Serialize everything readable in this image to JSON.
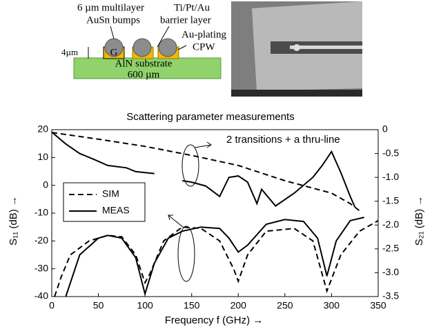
{
  "diagram": {
    "labels": [
      "6 µm multilayer",
      "AuSn bumps",
      "Ti/Pt/Au",
      "barrier layer",
      "Au-plating",
      "CPW",
      "4µm",
      "G",
      "AlN substrate",
      "600 µm"
    ]
  },
  "chart_data": {
    "type": "line",
    "title": "Scattering parameter measurements",
    "x_label": "Frequency f (GHz) →",
    "y_label": "S₁₁ (dB) →",
    "y2_label": "S₂₁ (dB) →",
    "annotation": "2 transitions + a thru-line",
    "xlim": [
      0,
      350
    ],
    "xticks": [
      0,
      50,
      100,
      150,
      200,
      250,
      300,
      350
    ],
    "ylim": [
      -40,
      20
    ],
    "yticks": [
      -40,
      -30,
      -20,
      -10,
      0,
      10,
      20
    ],
    "y2lim": [
      -3.5,
      0
    ],
    "y2ticks": [
      {
        "value": -3.5,
        "label": "-3.5"
      },
      {
        "value": -3,
        "label": "-3.0"
      },
      {
        "value": -2.5,
        "label": "-2.5"
      },
      {
        "value": -2,
        "label": "-2.0"
      },
      {
        "value": -1.5,
        "label": "-1.5"
      },
      {
        "value": -1,
        "label": "-1.0"
      },
      {
        "value": -0.5,
        "label": "-0.5"
      },
      0
    ],
    "legend": [
      {
        "name": "SIM",
        "style": "dashed"
      },
      {
        "name": "MEAS",
        "style": "solid"
      }
    ],
    "series": [
      {
        "style": "dashed",
        "color": "#000000",
        "axis": "y",
        "x": [
          3,
          10,
          20,
          40,
          60,
          75,
          90,
          100,
          105,
          120,
          140,
          160,
          180,
          195,
          200,
          210,
          230,
          260,
          280,
          295,
          310,
          330,
          350
        ],
        "values": [
          -40,
          -33,
          -25,
          -20,
          -18,
          -18.5,
          -25,
          -35,
          -32,
          -20,
          -15,
          -15.5,
          -20,
          -30,
          -34.5,
          -25,
          -16.5,
          -15.5,
          -20,
          -38,
          -25,
          -16.5,
          -12.7
        ]
      },
      {
        "style": "solid",
        "color": "#000000",
        "axis": "y",
        "x": [
          15,
          30,
          50,
          60,
          75,
          90,
          100,
          110,
          125,
          140,
          160,
          180,
          190,
          200,
          210,
          230,
          250,
          270,
          285,
          295,
          305,
          320,
          335
        ],
        "values": [
          -40,
          -25,
          -19,
          -18,
          -19,
          -26,
          -39,
          -28,
          -19,
          -16.5,
          -15,
          -15.5,
          -19,
          -24,
          -21.5,
          -14,
          -12.3,
          -13,
          -19,
          -32.6,
          -20,
          -12.7,
          -11.5
        ]
      },
      {
        "style": "dashed",
        "color": "#000000",
        "axis": "y2",
        "x": [
          0,
          50,
          100,
          150,
          200,
          250,
          300,
          320,
          330
        ],
        "values": [
          -0.06,
          -0.2,
          -0.35,
          -0.54,
          -0.75,
          -1.07,
          -1.33,
          -1.55,
          -1.7
        ]
      },
      {
        "style": "solid",
        "color": "#000000",
        "axis": "y2",
        "x": [
          0,
          15,
          30,
          45,
          60,
          80,
          90,
          100,
          110,
          125,
          140,
          150,
          165,
          180,
          190,
          200,
          210,
          220,
          225,
          240,
          260,
          280,
          290,
          300,
          310,
          320,
          325
        ],
        "values": [
          -0.05,
          -0.3,
          -0.5,
          -0.62,
          -0.75,
          -0.8,
          -0.88,
          -0.9,
          -0.92,
          null,
          -1.07,
          -1.1,
          -1.18,
          -1.4,
          -1.0,
          -0.97,
          -1.1,
          -1.55,
          -1.25,
          -1.6,
          -1.33,
          -1.0,
          -0.75,
          -0.46,
          -0.9,
          -1.4,
          -1.62
        ]
      }
    ]
  }
}
